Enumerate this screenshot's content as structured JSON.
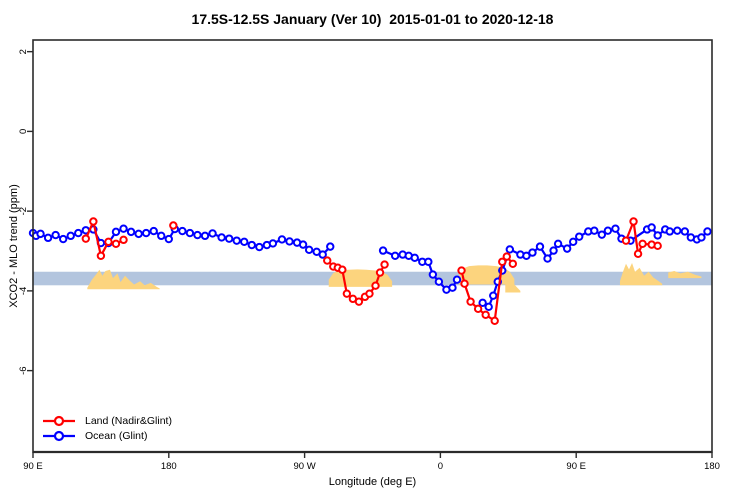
{
  "title": "17.5S-12.5S January (Ver 10)  2015-01-01 to 2020-12-18",
  "legend": {
    "items": [
      {
        "label": "Land (Nadir&Glint)",
        "color": "#ff0000"
      },
      {
        "label": "Ocean (Glint)",
        "color": "#0000ff"
      }
    ]
  },
  "chart_data": {
    "type": "line",
    "title": "17.5S-12.5S January (Ver 10)  2015-01-01 to 2020-12-18",
    "xlabel": "Longitude (deg E)",
    "ylabel": "XCO2 - MLO trend (ppm)",
    "x_axis": {
      "ticks": [
        90,
        180,
        270,
        360,
        450,
        540
      ],
      "tick_labels": [
        "90 E",
        "180",
        "90 W",
        "0",
        "90 E",
        "180"
      ],
      "note": "longitude axis runs eastward from 90E wrapping through 180, 90W, 0 and back to 180"
    },
    "y_axis": {
      "ticks": [
        2,
        0,
        -2,
        -4,
        -6
      ],
      "tick_labels": [
        "2",
        "0",
        "-2",
        "-4",
        "-6"
      ],
      "range": [
        -8.0,
        2.3
      ]
    },
    "grid": false,
    "legend_position": "bottom-left-inside",
    "band": {
      "name": "reference-band",
      "v_top": -3.52,
      "v_bottom": -3.86,
      "color": "#b3c5de"
    },
    "shading_color": "#fcd47e",
    "shading": [
      {
        "base": -3.96,
        "top": [
          [
            126,
            -3.92
          ],
          [
            129,
            -3.72
          ],
          [
            132,
            -3.58
          ],
          [
            134,
            -3.47
          ],
          [
            136,
            -3.62
          ],
          [
            138,
            -3.5
          ],
          [
            141,
            -3.47
          ],
          [
            143,
            -3.68
          ],
          [
            146,
            -3.56
          ],
          [
            148,
            -3.78
          ],
          [
            151,
            -3.62
          ],
          [
            154,
            -3.74
          ],
          [
            157,
            -3.84
          ],
          [
            161,
            -3.76
          ],
          [
            164,
            -3.86
          ],
          [
            168,
            -3.8
          ],
          [
            172,
            -3.9
          ],
          [
            174,
            -3.94
          ]
        ]
      },
      {
        "base": -3.9,
        "top": [
          [
            286,
            -3.72
          ],
          [
            289,
            -3.55
          ],
          [
            293,
            -3.49
          ],
          [
            299,
            -3.47
          ],
          [
            305,
            -3.46
          ],
          [
            311,
            -3.47
          ],
          [
            317,
            -3.49
          ],
          [
            321,
            -3.52
          ],
          [
            325,
            -3.6
          ],
          [
            328,
            -3.76
          ]
        ]
      },
      {
        "base": -3.84,
        "top": [
          [
            372,
            -3.62
          ],
          [
            375,
            -3.44
          ],
          [
            379,
            -3.38
          ],
          [
            385,
            -3.36
          ],
          [
            391,
            -3.36
          ],
          [
            397,
            -3.38
          ],
          [
            402,
            -3.42
          ],
          [
            406,
            -3.52
          ],
          [
            409,
            -3.7
          ]
        ]
      },
      {
        "base": -4.04,
        "top": [
          [
            403,
            -3.62
          ],
          [
            406,
            -3.7
          ],
          [
            408,
            -3.8
          ],
          [
            411,
            -3.92
          ],
          [
            413,
            -4.0
          ]
        ]
      },
      {
        "base": -3.86,
        "top": [
          [
            479,
            -3.76
          ],
          [
            481,
            -3.52
          ],
          [
            483,
            -3.32
          ],
          [
            485,
            -3.46
          ],
          [
            487,
            -3.3
          ],
          [
            489,
            -3.52
          ],
          [
            492,
            -3.42
          ],
          [
            495,
            -3.62
          ],
          [
            498,
            -3.52
          ],
          [
            501,
            -3.66
          ],
          [
            504,
            -3.74
          ],
          [
            507,
            -3.82
          ]
        ]
      },
      {
        "base": -3.68,
        "top": [
          [
            511,
            -3.54
          ],
          [
            515,
            -3.5
          ],
          [
            519,
            -3.56
          ],
          [
            524,
            -3.52
          ],
          [
            529,
            -3.6
          ],
          [
            533,
            -3.64
          ]
        ]
      }
    ],
    "series": [
      {
        "id": "ocean",
        "name": "Ocean (Glint)",
        "color": "#0000ff",
        "marker": "open-circle",
        "segments": [
          [
            [
              90,
              -2.55
            ],
            [
              92,
              -2.62
            ],
            [
              95,
              -2.57
            ],
            [
              100,
              -2.67
            ],
            [
              105,
              -2.6
            ],
            [
              110,
              -2.7
            ],
            [
              115,
              -2.62
            ],
            [
              120,
              -2.55
            ],
            [
              125,
              -2.48
            ],
            [
              130,
              -2.46
            ],
            [
              135,
              -2.8
            ],
            [
              140,
              -2.8
            ],
            [
              145,
              -2.52
            ],
            [
              150,
              -2.44
            ],
            [
              155,
              -2.52
            ],
            [
              160,
              -2.57
            ],
            [
              165,
              -2.55
            ],
            [
              170,
              -2.5
            ],
            [
              175,
              -2.62
            ],
            [
              180,
              -2.7
            ],
            [
              184,
              -2.45
            ],
            [
              189,
              -2.5
            ],
            [
              194,
              -2.55
            ],
            [
              199,
              -2.6
            ],
            [
              204,
              -2.62
            ],
            [
              209,
              -2.56
            ],
            [
              215,
              -2.66
            ],
            [
              220,
              -2.69
            ],
            [
              225,
              -2.74
            ],
            [
              230,
              -2.77
            ],
            [
              235,
              -2.85
            ],
            [
              240,
              -2.9
            ],
            [
              245,
              -2.85
            ],
            [
              249,
              -2.81
            ],
            [
              255,
              -2.71
            ],
            [
              260,
              -2.76
            ],
            [
              265,
              -2.79
            ],
            [
              269,
              -2.84
            ],
            [
              273,
              -2.97
            ],
            [
              278,
              -3.02
            ],
            [
              282,
              -3.09
            ],
            [
              287,
              -2.89
            ]
          ],
          [
            [
              322,
              -2.99
            ],
            [
              330,
              -3.12
            ],
            [
              335,
              -3.09
            ],
            [
              339,
              -3.12
            ],
            [
              343,
              -3.17
            ],
            [
              348,
              -3.27
            ],
            [
              352,
              -3.27
            ],
            [
              355,
              -3.59
            ],
            [
              359,
              -3.77
            ],
            [
              364,
              -3.97
            ],
            [
              368,
              -3.92
            ],
            [
              371,
              -3.72
            ]
          ],
          [
            [
              388,
              -4.3
            ],
            [
              392,
              -4.4
            ],
            [
              395,
              -4.12
            ],
            [
              398,
              -3.77
            ],
            [
              401,
              -3.49
            ],
            [
              406,
              -2.96
            ],
            [
              413,
              -3.09
            ],
            [
              417,
              -3.12
            ],
            [
              421,
              -3.04
            ],
            [
              426,
              -2.89
            ],
            [
              431,
              -3.19
            ],
            [
              435,
              -2.99
            ],
            [
              438,
              -2.82
            ],
            [
              444,
              -2.94
            ],
            [
              448,
              -2.77
            ],
            [
              452,
              -2.64
            ],
            [
              458,
              -2.51
            ],
            [
              462,
              -2.49
            ],
            [
              467,
              -2.59
            ],
            [
              471,
              -2.49
            ],
            [
              476,
              -2.44
            ],
            [
              480,
              -2.69
            ],
            [
              486,
              -2.74
            ],
            [
              497,
              -2.46
            ],
            [
              500,
              -2.41
            ],
            [
              504,
              -2.61
            ],
            [
              509,
              -2.46
            ],
            [
              512,
              -2.51
            ],
            [
              517,
              -2.49
            ],
            [
              522,
              -2.51
            ],
            [
              526,
              -2.66
            ],
            [
              530,
              -2.71
            ],
            [
              533,
              -2.66
            ],
            [
              537,
              -2.51
            ]
          ]
        ]
      },
      {
        "id": "land",
        "name": "Land (Nadir&Glint)",
        "color": "#ff0000",
        "marker": "open-circle",
        "segments": [
          [
            [
              125,
              -2.69
            ],
            [
              130,
              -2.26
            ],
            [
              135,
              -3.12
            ],
            [
              140,
              -2.77
            ],
            [
              145,
              -2.82
            ],
            [
              150,
              -2.72
            ]
          ],
          [
            [
              183,
              -2.36
            ]
          ],
          [
            [
              285,
              -3.24
            ],
            [
              289,
              -3.39
            ],
            [
              292,
              -3.42
            ],
            [
              295,
              -3.47
            ],
            [
              298,
              -4.07
            ],
            [
              302,
              -4.2
            ],
            [
              306,
              -4.27
            ],
            [
              310,
              -4.15
            ],
            [
              313,
              -4.07
            ],
            [
              317,
              -3.87
            ],
            [
              320,
              -3.54
            ],
            [
              323,
              -3.34
            ]
          ],
          [
            [
              374,
              -3.49
            ],
            [
              376,
              -3.82
            ],
            [
              380,
              -4.27
            ],
            [
              385,
              -4.45
            ],
            [
              390,
              -4.6
            ],
            [
              396,
              -4.75
            ],
            [
              401,
              -3.27
            ],
            [
              404,
              -3.14
            ],
            [
              408,
              -3.32
            ]
          ],
          [
            [
              483,
              -2.74
            ],
            [
              488,
              -2.26
            ],
            [
              491,
              -3.07
            ],
            [
              494,
              -2.82
            ],
            [
              500,
              -2.84
            ],
            [
              504,
              -2.87
            ]
          ]
        ]
      }
    ]
  }
}
